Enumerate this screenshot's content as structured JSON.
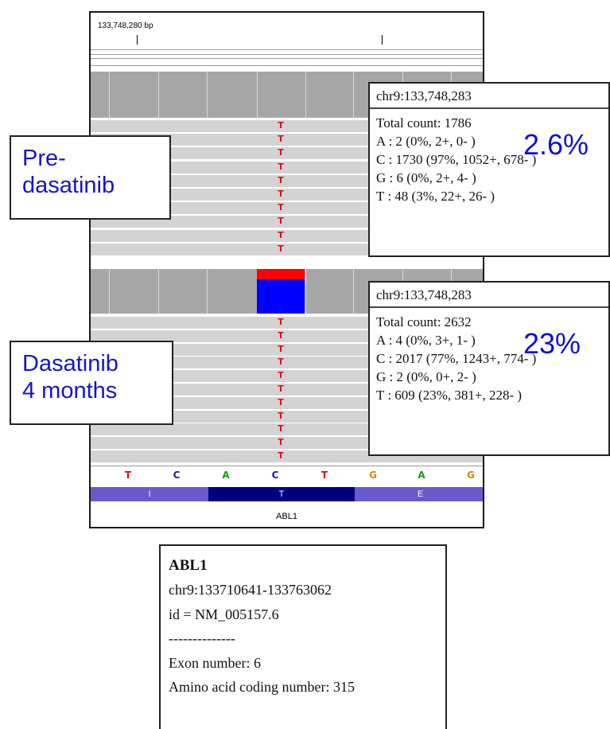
{
  "ruler": {
    "position_label": "133,748,280 bp"
  },
  "tracks": {
    "reference_bases": [
      {
        "base": "T",
        "color": "#d01010"
      },
      {
        "base": "C",
        "color": "#1a1ab0"
      },
      {
        "base": "A",
        "color": "#10a010"
      },
      {
        "base": "C",
        "color": "#1a1ab0"
      },
      {
        "base": "T",
        "color": "#d01010"
      },
      {
        "base": "G",
        "color": "#d08a10"
      },
      {
        "base": "A",
        "color": "#10a010"
      },
      {
        "base": "G",
        "color": "#d08a10"
      }
    ],
    "amino_acids": [
      "I",
      "T",
      "E"
    ],
    "gene_name": "ABL1",
    "mismatch_base": "T"
  },
  "labels": {
    "pre_line1": "Pre-",
    "pre_line2": "dasatinib",
    "post_line1": "Dasatinib",
    "post_line2": "4 months"
  },
  "popup_pre": {
    "locus": "chr9:133,748,283",
    "total": "Total count: 1786",
    "a": "A : 2 (0%, 2+, 0- )",
    "c": "C : 1730 (97%, 1052+, 678- )",
    "g": "G : 6 (0%, 2+, 4- )",
    "t": "T : 48 (3%, 22+, 26- )",
    "pct": "2.6%"
  },
  "popup_post": {
    "locus": "chr9:133,748,283",
    "total": "Total count: 2632",
    "a": "A : 4 (0%, 3+, 1- )",
    "c": "C : 2017 (77%, 1243+, 774- )",
    "g": "G : 2 (0%, 0+, 2- )",
    "t": "T : 609 (23%, 381+, 228- )",
    "pct": "23%"
  },
  "gene_info": {
    "name": "ABL1",
    "locus": "chr9:133710641-133763062",
    "id": "id = NM_005157.6",
    "separator": "--------------",
    "exon": "Exon number: 6",
    "aa_number": "Amino acid coding number: 315"
  },
  "colors": {
    "mismatch": "#e01010",
    "coverage_ref": "#0000ff",
    "coverage_alt": "#ff0000",
    "label_text": "#1515c8",
    "aa_light": "#6a5acd",
    "aa_dark": "#000080"
  }
}
